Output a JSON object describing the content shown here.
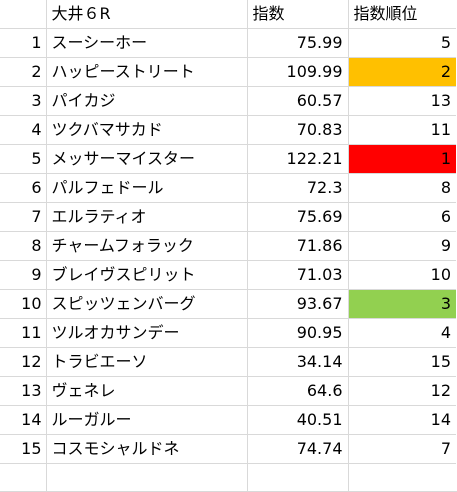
{
  "sheet": {
    "header": {
      "race": "大井６R",
      "index_label": "指数",
      "rank_label": "指数順位"
    },
    "highlight_colors": {
      "first": "#ff0000",
      "second": "#ffc000",
      "third": "#92d050"
    },
    "rows": [
      {
        "no": "1",
        "name": "スーシーホー",
        "index": "75.99",
        "rank": "5",
        "highlight": ""
      },
      {
        "no": "2",
        "name": "ハッピーストリート",
        "index": "109.99",
        "rank": "2",
        "highlight": "#ffc000"
      },
      {
        "no": "3",
        "name": "パイカジ",
        "index": "60.57",
        "rank": "13",
        "highlight": ""
      },
      {
        "no": "4",
        "name": "ツクバマサカド",
        "index": "70.83",
        "rank": "11",
        "highlight": ""
      },
      {
        "no": "5",
        "name": "メッサーマイスター",
        "index": "122.21",
        "rank": "1",
        "highlight": "#ff0000"
      },
      {
        "no": "6",
        "name": "パルフェドール",
        "index": "72.3",
        "rank": "8",
        "highlight": ""
      },
      {
        "no": "7",
        "name": "エルラティオ",
        "index": "75.69",
        "rank": "6",
        "highlight": ""
      },
      {
        "no": "8",
        "name": "チャームフォラック",
        "index": "71.86",
        "rank": "9",
        "highlight": ""
      },
      {
        "no": "9",
        "name": "ブレイヴスピリット",
        "index": "71.03",
        "rank": "10",
        "highlight": ""
      },
      {
        "no": "10",
        "name": "スピッツェンバーグ",
        "index": "93.67",
        "rank": "3",
        "highlight": "#92d050"
      },
      {
        "no": "11",
        "name": "ツルオカサンデー",
        "index": "90.95",
        "rank": "4",
        "highlight": ""
      },
      {
        "no": "12",
        "name": "トラビエーソ",
        "index": "34.14",
        "rank": "15",
        "highlight": ""
      },
      {
        "no": "13",
        "name": "ヴェネレ",
        "index": "64.6",
        "rank": "12",
        "highlight": ""
      },
      {
        "no": "14",
        "name": "ルーガルー",
        "index": "40.51",
        "rank": "14",
        "highlight": ""
      },
      {
        "no": "15",
        "name": "コスモシャルドネ",
        "index": "74.74",
        "rank": "7",
        "highlight": ""
      }
    ]
  }
}
